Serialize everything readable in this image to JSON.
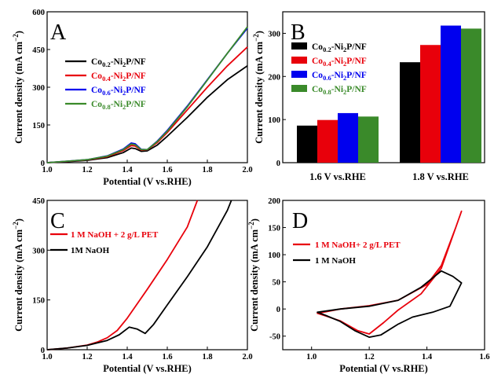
{
  "chart_data": [
    {
      "panel": "A",
      "type": "line",
      "xlabel": "Potential (V vs.RHE)",
      "ylabel": "Current density (mA cm⁻²)",
      "xlim": [
        1.0,
        2.0
      ],
      "ylim": [
        0,
        600
      ],
      "xticks": [
        "1.0",
        "1.2",
        "1.4",
        "1.6",
        "1.8",
        "2.0"
      ],
      "yticks": [
        "0",
        "150",
        "300",
        "450",
        "600"
      ],
      "legend_position": "upper-left",
      "series": [
        {
          "name": "Co0.2-Ni2P/NF",
          "base": "Co",
          "sub": "0.2",
          "rest": "-Ni",
          "sub2": "2",
          "tail": "P/NF",
          "color": "#000000",
          "x": [
            1.0,
            1.1,
            1.2,
            1.3,
            1.38,
            1.42,
            1.44,
            1.47,
            1.5,
            1.55,
            1.6,
            1.7,
            1.8,
            1.9,
            2.0
          ],
          "y": [
            0,
            4,
            9,
            20,
            40,
            58,
            56,
            45,
            47,
            70,
            105,
            180,
            260,
            330,
            385
          ]
        },
        {
          "name": "Co0.4-Ni2P/NF",
          "base": "Co",
          "sub": "0.4",
          "rest": "-Ni",
          "sub2": "2",
          "tail": "P/NF",
          "color": "#e8000b",
          "x": [
            1.0,
            1.1,
            1.2,
            1.3,
            1.38,
            1.42,
            1.44,
            1.47,
            1.5,
            1.55,
            1.6,
            1.7,
            1.8,
            1.9,
            2.0
          ],
          "y": [
            0,
            5,
            11,
            24,
            48,
            68,
            66,
            50,
            51,
            80,
            120,
            210,
            300,
            385,
            460
          ]
        },
        {
          "name": "Co0.6-Ni2P/NF",
          "base": "Co",
          "sub": "0.6",
          "rest": "-Ni",
          "sub2": "2",
          "tail": "P/NF",
          "color": "#0000ee",
          "x": [
            1.0,
            1.1,
            1.2,
            1.3,
            1.38,
            1.42,
            1.44,
            1.47,
            1.5,
            1.55,
            1.6,
            1.7,
            1.8,
            1.9,
            2.0
          ],
          "y": [
            0,
            6,
            12,
            27,
            54,
            78,
            75,
            53,
            52,
            86,
            128,
            225,
            330,
            435,
            535
          ]
        },
        {
          "name": "Co0.8-Ni2P/NF",
          "base": "Co",
          "sub": "0.8",
          "rest": "-Ni",
          "sub2": "2",
          "tail": "P/NF",
          "color": "#3a8a2a",
          "x": [
            1.0,
            1.1,
            1.2,
            1.3,
            1.38,
            1.42,
            1.44,
            1.47,
            1.5,
            1.55,
            1.6,
            1.7,
            1.8,
            1.9,
            2.0
          ],
          "y": [
            0,
            6,
            12,
            26,
            52,
            74,
            71,
            52,
            52,
            84,
            125,
            222,
            328,
            435,
            540
          ]
        }
      ]
    },
    {
      "panel": "B",
      "type": "bar",
      "ylabel": "Current density (mA cm⁻²)",
      "ylim": [
        0,
        350
      ],
      "yticks": [
        "0",
        "100",
        "200",
        "300"
      ],
      "categories": [
        "1.6 V vs.RHE",
        "1.8 V vs.RHE"
      ],
      "legend_position": "upper-left",
      "series": [
        {
          "name": "Co0.2-Ni2P/NF",
          "base": "Co",
          "sub": "0.2",
          "rest": "-Ni",
          "sub2": "2",
          "tail": "P/NF",
          "color": "#000000",
          "values": [
            86,
            233
          ]
        },
        {
          "name": "Co0.4-Ni2P/NF",
          "base": "Co",
          "sub": "0.4",
          "rest": "-Ni",
          "sub2": "2",
          "tail": "P/NF",
          "color": "#e8000b",
          "values": [
            99,
            273
          ]
        },
        {
          "name": "Co0.6-Ni2P/NF",
          "base": "Co",
          "sub": "0.6",
          "rest": "-Ni",
          "sub2": "2",
          "tail": "P/NF",
          "color": "#0000ee",
          "values": [
            115,
            318
          ]
        },
        {
          "name": "Co0.8-Ni2P/NF",
          "base": "Co",
          "sub": "0.8",
          "rest": "-Ni",
          "sub2": "2",
          "tail": "P/NF",
          "color": "#3a8a2a",
          "values": [
            107,
            311
          ]
        }
      ]
    },
    {
      "panel": "C",
      "type": "line",
      "xlabel": "Potential (V vs.RHE)",
      "ylabel": "Current density (mA cm⁻²)",
      "xlim": [
        1.0,
        2.0
      ],
      "ylim": [
        0,
        450
      ],
      "xticks": [
        "1.0",
        "1.2",
        "1.4",
        "1.6",
        "1.8",
        "2.0"
      ],
      "yticks": [
        "0",
        "150",
        "300",
        "450"
      ],
      "legend_position": "upper-left",
      "series": [
        {
          "name": "1 M NaOH + 2 g/L PET",
          "color": "#e8000b",
          "x": [
            1.0,
            1.1,
            1.2,
            1.25,
            1.3,
            1.35,
            1.4,
            1.5,
            1.6,
            1.7,
            1.75
          ],
          "y": [
            0,
            5,
            14,
            23,
            36,
            58,
            95,
            182,
            272,
            370,
            450
          ]
        },
        {
          "name": "1M NaOH",
          "color": "#000000",
          "x": [
            1.0,
            1.1,
            1.2,
            1.3,
            1.36,
            1.41,
            1.45,
            1.49,
            1.53,
            1.6,
            1.7,
            1.8,
            1.9,
            1.92
          ],
          "y": [
            0,
            5,
            13,
            28,
            45,
            68,
            62,
            49,
            75,
            135,
            220,
            310,
            420,
            450
          ]
        }
      ]
    },
    {
      "panel": "D",
      "type": "line",
      "xlabel": "Potential (V vs.RHE)",
      "ylabel": "Current density (mA cm⁻²)",
      "xlim": [
        0.9,
        1.6
      ],
      "ylim": [
        -75,
        200
      ],
      "xticks": [
        "1.0",
        "1.2",
        "1.4",
        "1.6"
      ],
      "yticks": [
        "-50",
        "0",
        "50",
        "100",
        "150",
        "200"
      ],
      "legend_position": "upper-left",
      "series": [
        {
          "name": "1 M NaOH+ 2 g/L PET",
          "color": "#e8000b",
          "x": [
            1.02,
            1.1,
            1.2,
            1.3,
            1.4,
            1.45,
            1.5,
            1.52,
            1.45,
            1.38,
            1.3,
            1.25,
            1.2,
            1.16,
            1.1,
            1.05,
            1.02
          ],
          "y": [
            -8,
            0,
            6,
            16,
            45,
            80,
            150,
            180,
            75,
            28,
            -2,
            -25,
            -46,
            -40,
            -22,
            -13,
            -8
          ]
        },
        {
          "name": "1 M NaOH",
          "color": "#000000",
          "x": [
            1.02,
            1.1,
            1.2,
            1.3,
            1.38,
            1.45,
            1.49,
            1.52,
            1.48,
            1.42,
            1.35,
            1.3,
            1.24,
            1.2,
            1.15,
            1.1,
            1.05,
            1.02
          ],
          "y": [
            -6,
            0,
            5,
            16,
            40,
            70,
            60,
            48,
            5,
            -6,
            -15,
            -28,
            -48,
            -52,
            -40,
            -23,
            -12,
            -6
          ]
        }
      ]
    }
  ],
  "panel_letters": {
    "A": "A",
    "B": "B",
    "C": "C",
    "D": "D"
  }
}
